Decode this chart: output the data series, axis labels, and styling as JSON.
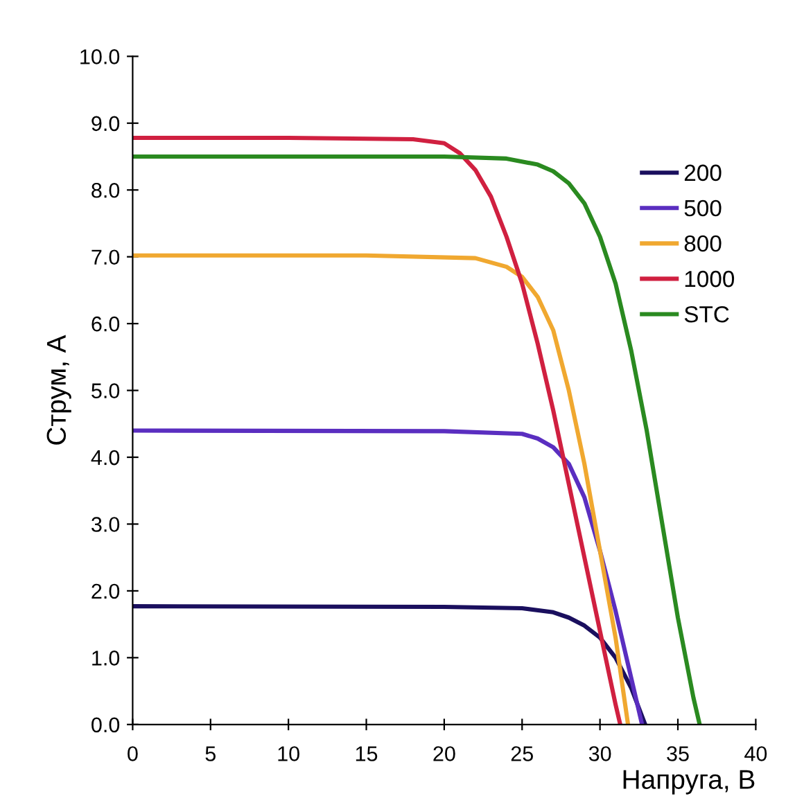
{
  "chart_data": {
    "type": "line",
    "xlabel": "Напруга, В",
    "ylabel": "Струм, А",
    "xlim": [
      0,
      40
    ],
    "ylim": [
      0,
      10
    ],
    "xticks": [
      0,
      5,
      10,
      15,
      20,
      25,
      30,
      35,
      40
    ],
    "yticks": [
      {
        "value": 0,
        "label": "0.0"
      },
      {
        "value": 1,
        "label": "1.0"
      },
      {
        "value": 2,
        "label": "2.0"
      },
      {
        "value": 3,
        "label": "3.0"
      },
      {
        "value": 4,
        "label": "4.0"
      },
      {
        "value": 5,
        "label": "5.0"
      },
      {
        "value": 6,
        "label": "6.0"
      },
      {
        "value": 7,
        "label": "7.0"
      },
      {
        "value": 8,
        "label": "8.0"
      },
      {
        "value": 9,
        "label": "9.0"
      },
      {
        "value": 10,
        "label": "10.0"
      }
    ],
    "grid": false,
    "legend": "top right",
    "marker": "none",
    "line_style": "solid",
    "series": [
      {
        "name": "200",
        "color": "#1a0f5e",
        "x": [
          0,
          20,
          25,
          27,
          28,
          29,
          30,
          31,
          32,
          32.9
        ],
        "values": [
          1.77,
          1.76,
          1.74,
          1.68,
          1.6,
          1.48,
          1.3,
          1.0,
          0.55,
          0
        ]
      },
      {
        "name": "500",
        "color": "#5a2ec0",
        "x": [
          0,
          20,
          25,
          26,
          27,
          28,
          29,
          30,
          31,
          32,
          32.7
        ],
        "values": [
          4.4,
          4.39,
          4.35,
          4.28,
          4.15,
          3.9,
          3.4,
          2.6,
          1.7,
          0.7,
          0
        ]
      },
      {
        "name": "800",
        "color": "#f0a830",
        "x": [
          0,
          15,
          22,
          24,
          25,
          26,
          27,
          28,
          29,
          30,
          31,
          31.8
        ],
        "values": [
          7.02,
          7.02,
          6.98,
          6.85,
          6.7,
          6.4,
          5.9,
          5.0,
          3.9,
          2.6,
          1.3,
          0
        ]
      },
      {
        "name": "1000",
        "color": "#d02040",
        "x": [
          0,
          10,
          18,
          20,
          21,
          22,
          23,
          24,
          25,
          26,
          27,
          28,
          29,
          30,
          31,
          31.3
        ],
        "values": [
          8.78,
          8.78,
          8.76,
          8.7,
          8.55,
          8.3,
          7.9,
          7.3,
          6.6,
          5.7,
          4.7,
          3.6,
          2.5,
          1.4,
          0.3,
          0
        ]
      },
      {
        "name": "STC",
        "color": "#2a8a20",
        "x": [
          0,
          20,
          24,
          26,
          27,
          28,
          29,
          30,
          31,
          32,
          33,
          34,
          35,
          36,
          36.4
        ],
        "values": [
          8.5,
          8.5,
          8.47,
          8.38,
          8.28,
          8.1,
          7.8,
          7.3,
          6.6,
          5.6,
          4.4,
          3.0,
          1.6,
          0.4,
          0
        ]
      }
    ]
  }
}
